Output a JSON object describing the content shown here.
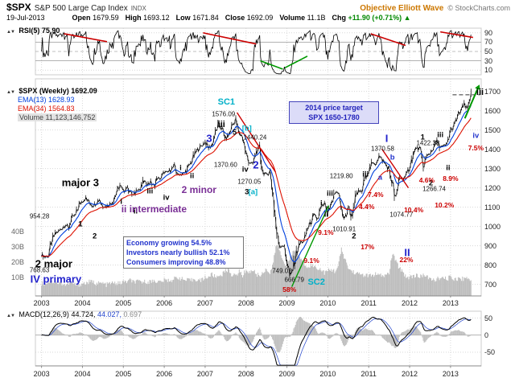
{
  "header": {
    "symbol": "$SPX",
    "name": "S&P 500 Large Cap Index",
    "exchange": "INDX",
    "brand": "Objective Elliott Wave",
    "copyright": "© StockCharts.com",
    "date": "19-Jul-2013",
    "quote": [
      {
        "label": "Open",
        "value": "1679.59"
      },
      {
        "label": "High",
        "value": "1693.12"
      },
      {
        "label": "Low",
        "value": "1671.84"
      },
      {
        "label": "Close",
        "value": "1692.09"
      },
      {
        "label": "Volume",
        "value": "11.1B"
      },
      {
        "label": "Chg",
        "value": "+11.90 (+0.71%)"
      }
    ],
    "chg_color": "#008800",
    "brand_color": "#cc7700"
  },
  "icons": {
    "collapse": "▲▼",
    "chg_up": "▲"
  },
  "rsi_panel": {
    "label": "RSI(5) 75.90"
  },
  "main_panel": {
    "legend_symbol": "$SPX (Weekly) 1692.09",
    "legend_ema13": "EMA(13) 1628.93",
    "legend_ema34": "EMA(34) 1564.83",
    "legend_volume": "Volume 11,123,146,752"
  },
  "macd_panel": {
    "name": "MACD(12,26,9)",
    "v1": "44.724,",
    "v2": "44.027,",
    "v3": "0.697"
  },
  "boxes": {
    "target": {
      "line1": "2014 price target",
      "line2": "SPX 1650-1780"
    },
    "economy": {
      "lines": [
        "Economy growing 54.5%",
        "Investors nearly bullish 52.1%",
        "Consumers improving 48.8%"
      ]
    }
  },
  "axes": {
    "price": [
      1700,
      1600,
      1500,
      1400,
      1300,
      1200,
      1100,
      1000,
      900,
      800,
      700
    ],
    "rsi": [
      90,
      70,
      50,
      30,
      10
    ],
    "macd": [
      50,
      0,
      -50
    ],
    "volume": [
      {
        "label": "40B",
        "value": 40
      },
      {
        "label": "30B",
        "value": 30
      },
      {
        "label": "20B",
        "value": 20
      },
      {
        "label": "10B",
        "value": 10
      }
    ],
    "years": [
      2003,
      2004,
      2005,
      2006,
      2007,
      2008,
      2009,
      2010,
      2011,
      2012,
      2013
    ]
  },
  "chart_data": {
    "type": "line",
    "title": "$SPX S&P 500 Large Cap Index (Weekly) with RSI(5), EMA(13), EMA(34), Volume and MACD(12,26,9)",
    "x_start_year": 2003.0,
    "x_step": "monthly",
    "xlim": [
      2002.85,
      2013.75
    ],
    "price_ylim": [
      640,
      1765
    ],
    "rsi_ylim": [
      0,
      100
    ],
    "macd_ylim": [
      -90,
      70
    ],
    "last_close": 1692.09,
    "series": [
      {
        "name": "$SPX close (monthly samples 2003-01 to 2013-07)",
        "values": [
          855,
          841,
          848,
          916,
          963,
          974,
          990,
          1008,
          996,
          1050,
          1058,
          1112,
          1131,
          1145,
          1126,
          1107,
          1121,
          1141,
          1102,
          1104,
          1115,
          1130,
          1174,
          1212,
          1181,
          1204,
          1181,
          1157,
          1192,
          1191,
          1234,
          1220,
          1229,
          1207,
          1249,
          1248,
          1280,
          1281,
          1295,
          1311,
          1270,
          1270,
          1277,
          1304,
          1336,
          1378,
          1401,
          1418,
          1438,
          1407,
          1421,
          1482,
          1531,
          1503,
          1455,
          1474,
          1527,
          1549,
          1481,
          1468,
          1379,
          1331,
          1323,
          1386,
          1400,
          1280,
          1267,
          1283,
          1166,
          969,
          896,
          903,
          826,
          735,
          798,
          873,
          919,
          919,
          987,
          1021,
          1057,
          1036,
          1096,
          1115,
          1074,
          1104,
          1169,
          1187,
          1089,
          1031,
          1102,
          1049,
          1141,
          1183,
          1181,
          1258,
          1286,
          1327,
          1326,
          1364,
          1345,
          1321,
          1292,
          1219,
          1131,
          1253,
          1247,
          1258,
          1312,
          1366,
          1408,
          1398,
          1310,
          1362,
          1379,
          1407,
          1441,
          1412,
          1416,
          1426,
          1498,
          1515,
          1569,
          1598,
          1631,
          1606,
          1692
        ]
      },
      {
        "name": "Weekly volume (billions, monthly samples)",
        "values": [
          8,
          8,
          9,
          9,
          9,
          8,
          8,
          7,
          8,
          8,
          7,
          7,
          8,
          8,
          9,
          9,
          8,
          8,
          8,
          7,
          8,
          8,
          8,
          8,
          9,
          9,
          10,
          9,
          9,
          9,
          9,
          9,
          9,
          10,
          9,
          9,
          10,
          10,
          10,
          11,
          12,
          11,
          10,
          10,
          10,
          11,
          10,
          10,
          12,
          12,
          14,
          12,
          13,
          14,
          16,
          17,
          13,
          13,
          16,
          13,
          17,
          15,
          17,
          14,
          13,
          15,
          18,
          14,
          22,
          34,
          28,
          22,
          20,
          24,
          30,
          28,
          24,
          21,
          19,
          20,
          19,
          18,
          17,
          15,
          16,
          17,
          16,
          19,
          30,
          24,
          18,
          16,
          15,
          14,
          14,
          13,
          13,
          13,
          14,
          13,
          13,
          13,
          15,
          28,
          22,
          18,
          16,
          12,
          12,
          13,
          13,
          12,
          14,
          12,
          11,
          10,
          11,
          11,
          11,
          11,
          12,
          11,
          11,
          11,
          11,
          12,
          10
        ]
      }
    ],
    "indicators": {
      "rsi_period": 5,
      "ema_periods": [
        13,
        34
      ],
      "macd_params": [
        12,
        26,
        9
      ]
    },
    "annotations": [
      {
        "t": 2002.95,
        "v": 1052,
        "s": "954.28",
        "c": "price"
      },
      {
        "t": 2002.95,
        "v": 772,
        "s": "768.63",
        "c": "price"
      },
      {
        "t": 2003.3,
        "v": 806,
        "s": "2 major",
        "c": "big"
      },
      {
        "t": 2003.35,
        "v": 728,
        "s": "IV primary",
        "c": "bigb"
      },
      {
        "t": 2003.95,
        "v": 1228,
        "s": "major 3",
        "c": "big"
      },
      {
        "t": 2003.95,
        "v": 1012,
        "s": "1",
        "c": "wave"
      },
      {
        "t": 2004.3,
        "v": 948,
        "s": "2",
        "c": "wave"
      },
      {
        "t": 2004.95,
        "v": 1128,
        "s": "i",
        "c": "wave"
      },
      {
        "t": 2005.3,
        "v": 1078,
        "s": "ii",
        "c": "wave"
      },
      {
        "t": 2005.75,
        "v": 1090,
        "s": "ii intermediate",
        "c": "bigp"
      },
      {
        "t": 2005.65,
        "v": 1180,
        "s": "iii",
        "c": "wave"
      },
      {
        "t": 2006.05,
        "v": 1150,
        "s": "iv",
        "c": "wave"
      },
      {
        "t": 2006.85,
        "v": 1188,
        "s": "2 minor",
        "c": "bigp"
      },
      {
        "t": 2006.4,
        "v": 1302,
        "s": "i",
        "c": "wave"
      },
      {
        "t": 2006.68,
        "v": 1262,
        "s": "ii",
        "c": "wave"
      },
      {
        "t": 2007.1,
        "v": 1458,
        "s": "3",
        "c": "bigb"
      },
      {
        "t": 2007.5,
        "v": 1320,
        "s": "1370.60",
        "c": "price"
      },
      {
        "t": 2007.4,
        "v": 1526,
        "s": "iii",
        "c": "med"
      },
      {
        "t": 2007.52,
        "v": 1645,
        "s": "SC1",
        "c": "cyb"
      },
      {
        "t": 2007.45,
        "v": 1580,
        "s": "1576.09",
        "c": "price"
      },
      {
        "t": 2007.72,
        "v": 1484,
        "s": "5",
        "c": "wave"
      },
      {
        "t": 2008.02,
        "v": 1506,
        "s": "[b]",
        "c": "cy"
      },
      {
        "t": 2008.22,
        "v": 1462,
        "s": "1440.24",
        "c": "price"
      },
      {
        "t": 2007.98,
        "v": 1296,
        "s": "iv",
        "c": "wave"
      },
      {
        "t": 2008.24,
        "v": 1318,
        "s": "2",
        "c": "bigb"
      },
      {
        "t": 2008.08,
        "v": 1232,
        "s": "1270.05",
        "c": "price"
      },
      {
        "t": 2008.02,
        "v": 1176,
        "s": "3",
        "c": "wave"
      },
      {
        "t": 2008.17,
        "v": 1176,
        "s": "[a]",
        "c": "cy"
      },
      {
        "t": 2008.88,
        "v": 768,
        "s": "749.02",
        "c": "price"
      },
      {
        "t": 2009.18,
        "v": 722,
        "s": "666.79",
        "c": "price"
      },
      {
        "t": 2009.06,
        "v": 672,
        "s": "58%",
        "c": "pct"
      },
      {
        "t": 2009.72,
        "v": 712,
        "s": "SC2",
        "c": "cyb"
      },
      {
        "t": 2009.6,
        "v": 822,
        "s": "9.1%",
        "c": "pct"
      },
      {
        "t": 2009.84,
        "v": 1118,
        "s": "i",
        "c": "wave"
      },
      {
        "t": 2009.96,
        "v": 1062,
        "s": "ii",
        "c": "wave"
      },
      {
        "t": 2010.05,
        "v": 1168,
        "s": "iii",
        "c": "wave"
      },
      {
        "t": 2009.95,
        "v": 968,
        "s": "9.1%",
        "c": "pct"
      },
      {
        "t": 2010.33,
        "v": 1262,
        "s": "1219.80",
        "c": "price"
      },
      {
        "t": 2010.4,
        "v": 986,
        "s": "1010.91",
        "c": "price"
      },
      {
        "t": 2010.64,
        "v": 948,
        "s": "2",
        "c": "wave"
      },
      {
        "t": 2010.97,
        "v": 894,
        "s": "17%",
        "c": "pct"
      },
      {
        "t": 2010.92,
        "v": 1268,
        "s": "iii",
        "c": "wave"
      },
      {
        "t": 2010.95,
        "v": 1102,
        "s": "4.4%",
        "c": "pct"
      },
      {
        "t": 2011.17,
        "v": 1164,
        "s": "7.4%",
        "c": "pct"
      },
      {
        "t": 2011.34,
        "v": 1402,
        "s": "1370.58",
        "c": "price"
      },
      {
        "t": 2011.44,
        "v": 1458,
        "s": "I",
        "c": "bigb"
      },
      {
        "t": 2011.58,
        "v": 1356,
        "s": "b",
        "c": "waveb"
      },
      {
        "t": 2011.28,
        "v": 1252,
        "s": "a",
        "c": "waveb"
      },
      {
        "t": 2011.8,
        "v": 1062,
        "s": "1074.77",
        "c": "price"
      },
      {
        "t": 2011.94,
        "v": 866,
        "s": "II",
        "c": "bigb"
      },
      {
        "t": 2011.92,
        "v": 828,
        "s": "22%",
        "c": "pct"
      },
      {
        "t": 2012.1,
        "v": 1086,
        "s": "10.4%",
        "c": "pct"
      },
      {
        "t": 2012.32,
        "v": 1460,
        "s": "1",
        "c": "wave"
      },
      {
        "t": 2012.45,
        "v": 1432,
        "s": "1422.38",
        "c": "price"
      },
      {
        "t": 2012.75,
        "v": 1472,
        "s": "iii",
        "c": "wave"
      },
      {
        "t": 2012.52,
        "v": 1224,
        "s": "2",
        "c": "wave"
      },
      {
        "t": 2012.6,
        "v": 1194,
        "s": "1266.74",
        "c": "price"
      },
      {
        "t": 2012.42,
        "v": 1240,
        "s": "4.6%",
        "c": "pct"
      },
      {
        "t": 2012.85,
        "v": 1112,
        "s": "10.2%",
        "c": "pct"
      },
      {
        "t": 2013.0,
        "v": 1248,
        "s": "8.9%",
        "c": "pct"
      },
      {
        "t": 2012.94,
        "v": 1304,
        "s": "ii",
        "c": "wave"
      },
      {
        "t": 2013.62,
        "v": 1470,
        "s": "iv",
        "c": "waveb"
      },
      {
        "t": 2013.62,
        "v": 1408,
        "s": "7.5%",
        "c": "pct"
      },
      {
        "t": 2013.72,
        "v": 1694,
        "s": "iii",
        "c": "med"
      }
    ],
    "trendlines_main": [
      {
        "x1": 2007.78,
        "y1": 1590,
        "x2": 2008.72,
        "y2": 1282,
        "color": "#cc0000",
        "width": 1.4
      },
      {
        "x1": 2011.32,
        "y1": 1402,
        "x2": 2011.97,
        "y2": 1200,
        "color": "#cc0000",
        "width": 1.4
      },
      {
        "x1": 2009.12,
        "y1": 688,
        "x2": 2010.02,
        "y2": 1108,
        "color": "#009900",
        "width": 1.4
      },
      {
        "x1": 2013.05,
        "y1": 1682,
        "x2": 2013.72,
        "y2": 1682,
        "color": "#333333",
        "width": 1,
        "dash": true
      },
      {
        "x1": 2013.35,
        "y1": 1560,
        "x2": 2013.66,
        "y2": 1712,
        "color": "#009900",
        "width": 2,
        "arrow": true
      }
    ],
    "trendlines_rsi": [
      {
        "x1": 2003.55,
        "y1": 88,
        "x2": 2004.6,
        "y2": 71,
        "color": "#cc0000"
      },
      {
        "x1": 2006.95,
        "y1": 90,
        "x2": 2008.25,
        "y2": 66,
        "color": "#cc0000"
      },
      {
        "x1": 2008.35,
        "y1": 30,
        "x2": 2008.9,
        "y2": 12,
        "color": "#009900"
      },
      {
        "x1": 2008.95,
        "y1": 15,
        "x2": 2009.5,
        "y2": 40,
        "color": "#009900"
      },
      {
        "x1": 2011.05,
        "y1": 88,
        "x2": 2011.9,
        "y2": 63,
        "color": "#cc0000"
      },
      {
        "x1": 2012.75,
        "y1": 92,
        "x2": 2013.55,
        "y2": 80,
        "color": "#cc0000"
      }
    ]
  }
}
